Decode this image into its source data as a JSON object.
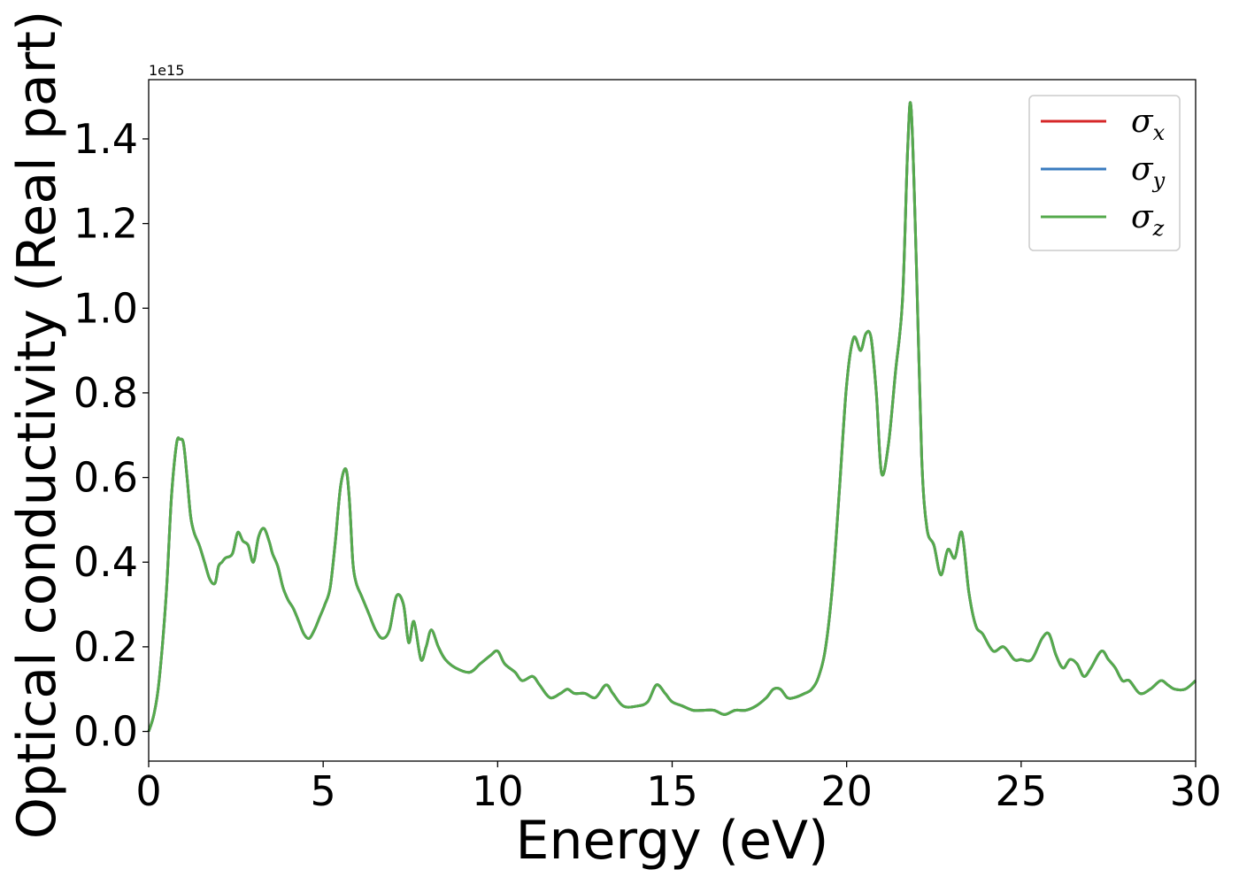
{
  "chart_data": {
    "type": "line",
    "title": "",
    "xlabel": "Energy (eV)",
    "ylabel": "Optical conductivity (Real part)",
    "y_offset_text": "1e15",
    "xlim": [
      0,
      30
    ],
    "ylim": [
      -0.07,
      1.54
    ],
    "x_ticks": [
      0,
      5,
      10,
      15,
      20,
      25,
      30
    ],
    "x_tick_labels": [
      "0",
      "5",
      "10",
      "15",
      "20",
      "25",
      "30"
    ],
    "y_ticks": [
      0.0,
      0.2,
      0.4,
      0.6,
      0.8,
      1.0,
      1.2,
      1.4
    ],
    "y_tick_labels": [
      "0.0",
      "0.2",
      "0.4",
      "0.6",
      "0.8",
      "1.0",
      "1.2",
      "1.4"
    ],
    "grid": false,
    "legend_position": "top-right",
    "series": [
      {
        "name": "σx",
        "legend_symbol": "σ",
        "legend_subscript": "x",
        "color": "#d62728"
      },
      {
        "name": "σy",
        "legend_symbol": "σ",
        "legend_subscript": "y",
        "color": "#3a7bbf"
      },
      {
        "name": "σz",
        "legend_symbol": "σ",
        "legend_subscript": "z",
        "color": "#55aa4c"
      }
    ],
    "x": [
      0,
      0.15,
      0.3,
      0.5,
      0.65,
      0.8,
      0.9,
      1.0,
      1.1,
      1.2,
      1.3,
      1.45,
      1.6,
      1.75,
      1.9,
      2.0,
      2.1,
      2.2,
      2.4,
      2.55,
      2.7,
      2.85,
      3.0,
      3.15,
      3.3,
      3.45,
      3.55,
      3.7,
      3.85,
      4.0,
      4.15,
      4.3,
      4.45,
      4.6,
      4.75,
      4.9,
      5.05,
      5.2,
      5.35,
      5.5,
      5.65,
      5.75,
      5.85,
      5.95,
      6.1,
      6.3,
      6.5,
      6.7,
      6.9,
      7.1,
      7.3,
      7.45,
      7.6,
      7.8,
      7.95,
      8.1,
      8.3,
      8.5,
      8.8,
      9.2,
      9.5,
      9.8,
      10.0,
      10.2,
      10.5,
      10.7,
      11.0,
      11.2,
      11.5,
      11.8,
      12.0,
      12.2,
      12.5,
      12.8,
      13.1,
      13.3,
      13.6,
      14.0,
      14.3,
      14.55,
      14.8,
      15.0,
      15.3,
      15.6,
      15.9,
      16.2,
      16.5,
      16.8,
      17.1,
      17.4,
      17.7,
      17.9,
      18.1,
      18.3,
      18.5,
      18.8,
      19.0,
      19.2,
      19.4,
      19.6,
      19.8,
      20.0,
      20.2,
      20.4,
      20.55,
      20.7,
      20.85,
      21.0,
      21.2,
      21.4,
      21.6,
      21.75,
      21.85,
      22.0,
      22.15,
      22.3,
      22.5,
      22.7,
      22.9,
      23.1,
      23.3,
      23.5,
      23.7,
      23.9,
      24.2,
      24.5,
      24.8,
      25.0,
      25.3,
      25.6,
      25.8,
      26.0,
      26.2,
      26.4,
      26.6,
      26.8,
      27.0,
      27.3,
      27.5,
      27.7,
      27.9,
      28.1,
      28.4,
      28.7,
      29.0,
      29.2,
      29.4,
      29.7,
      30.0
    ],
    "y": [
      0.0,
      0.04,
      0.12,
      0.32,
      0.55,
      0.68,
      0.69,
      0.68,
      0.6,
      0.51,
      0.47,
      0.44,
      0.4,
      0.36,
      0.35,
      0.39,
      0.4,
      0.41,
      0.42,
      0.47,
      0.45,
      0.44,
      0.4,
      0.46,
      0.48,
      0.45,
      0.42,
      0.39,
      0.34,
      0.31,
      0.29,
      0.26,
      0.23,
      0.22,
      0.24,
      0.27,
      0.3,
      0.34,
      0.45,
      0.58,
      0.62,
      0.55,
      0.4,
      0.35,
      0.32,
      0.28,
      0.24,
      0.22,
      0.24,
      0.32,
      0.3,
      0.21,
      0.26,
      0.17,
      0.2,
      0.24,
      0.2,
      0.17,
      0.15,
      0.14,
      0.16,
      0.18,
      0.19,
      0.16,
      0.14,
      0.12,
      0.13,
      0.11,
      0.08,
      0.09,
      0.1,
      0.09,
      0.09,
      0.08,
      0.11,
      0.09,
      0.06,
      0.06,
      0.07,
      0.11,
      0.09,
      0.07,
      0.06,
      0.05,
      0.05,
      0.05,
      0.04,
      0.05,
      0.05,
      0.06,
      0.08,
      0.1,
      0.1,
      0.08,
      0.08,
      0.09,
      0.1,
      0.13,
      0.2,
      0.35,
      0.58,
      0.82,
      0.93,
      0.9,
      0.94,
      0.93,
      0.8,
      0.61,
      0.68,
      0.85,
      1.02,
      1.38,
      1.47,
      1.1,
      0.65,
      0.48,
      0.44,
      0.37,
      0.43,
      0.41,
      0.47,
      0.33,
      0.25,
      0.23,
      0.19,
      0.2,
      0.17,
      0.17,
      0.17,
      0.22,
      0.23,
      0.18,
      0.15,
      0.17,
      0.16,
      0.13,
      0.15,
      0.19,
      0.17,
      0.15,
      0.12,
      0.12,
      0.09,
      0.1,
      0.12,
      0.11,
      0.1,
      0.1,
      0.12
    ]
  }
}
